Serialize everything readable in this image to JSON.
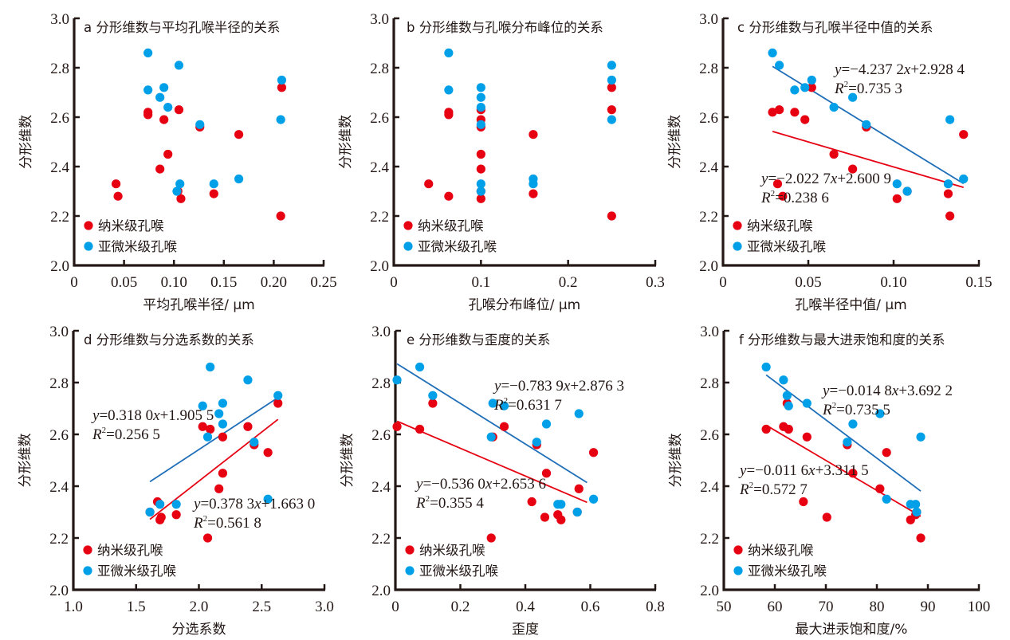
{
  "figure": {
    "y_axis_label": "分形维数",
    "legend": [
      {
        "key": "nano",
        "label": "纳米级孔喉",
        "color": "#E60012"
      },
      {
        "key": "submicro",
        "label": "亚微米级孔喉",
        "color": "#00A0E9"
      }
    ],
    "trendline_colors": {
      "nano": "#E60012",
      "submicro": "#1F6EB8"
    }
  },
  "chart_data": [
    {
      "id": "a",
      "type": "scatter",
      "title": "a 分形维数与平均孔喉半径的关系",
      "xlabel": "平均孔喉半径/ μm",
      "ylabel": "分形维数",
      "xlim": [
        0,
        0.25
      ],
      "ylim": [
        2.0,
        3.0
      ],
      "xticks": [
        0,
        0.05,
        0.1,
        0.15,
        0.2,
        0.25
      ],
      "xtick_labels": [
        "0",
        "0.05",
        "0.10",
        "0.15",
        "0.20",
        "0.25"
      ],
      "yticks": [
        2.0,
        2.2,
        2.4,
        2.6,
        2.8,
        3.0
      ],
      "ytick_labels": [
        "2.0",
        "2.2",
        "2.4",
        "2.6",
        "2.8",
        "3.0"
      ],
      "legend_position": "bottom-left",
      "series": [
        {
          "name": "纳米级孔喉",
          "key": "nano",
          "x": [
            0.042,
            0.044,
            0.074,
            0.074,
            0.09,
            0.094,
            0.086,
            0.105,
            0.104,
            0.107,
            0.126,
            0.14,
            0.165,
            0.208,
            0.207
          ],
          "y": [
            2.33,
            2.28,
            2.62,
            2.61,
            2.59,
            2.45,
            2.39,
            2.63,
            2.3,
            2.27,
            2.56,
            2.29,
            2.53,
            2.72,
            2.2
          ]
        },
        {
          "name": "亚微米级孔喉",
          "key": "submicro",
          "x": [
            0.074,
            0.074,
            0.09,
            0.086,
            0.094,
            0.105,
            0.126,
            0.106,
            0.103,
            0.14,
            0.165,
            0.208,
            0.207
          ],
          "y": [
            2.86,
            2.71,
            2.72,
            2.68,
            2.64,
            2.81,
            2.57,
            2.33,
            2.3,
            2.33,
            2.35,
            2.75,
            2.59
          ]
        }
      ],
      "trendlines": []
    },
    {
      "id": "b",
      "type": "scatter",
      "title": "b 分形维数与孔喉分布峰位的关系",
      "xlabel": "孔喉分布峰位/ μm",
      "ylabel": "分形维数",
      "xlim": [
        0,
        0.3
      ],
      "ylim": [
        2.0,
        3.0
      ],
      "xticks": [
        0,
        0.1,
        0.2,
        0.3
      ],
      "xtick_labels": [
        "0",
        "0.1",
        "0.2",
        "0.3"
      ],
      "yticks": [
        2.0,
        2.2,
        2.4,
        2.6,
        2.8,
        3.0
      ],
      "ytick_labels": [
        "2.0",
        "2.2",
        "2.4",
        "2.6",
        "2.8",
        "3.0"
      ],
      "legend_position": "bottom-left",
      "series": [
        {
          "name": "纳米级孔喉",
          "key": "nano",
          "x": [
            0.04,
            0.063,
            0.063,
            0.063,
            0.1,
            0.1,
            0.1,
            0.1,
            0.1,
            0.1,
            0.1,
            0.16,
            0.16,
            0.25,
            0.25,
            0.25
          ],
          "y": [
            2.33,
            2.28,
            2.62,
            2.61,
            2.59,
            2.56,
            2.45,
            2.39,
            2.3,
            2.27,
            2.63,
            2.53,
            2.29,
            2.72,
            2.63,
            2.2
          ]
        },
        {
          "name": "亚微米级孔喉",
          "key": "submicro",
          "x": [
            0.063,
            0.063,
            0.1,
            0.1,
            0.1,
            0.1,
            0.1,
            0.1,
            0.16,
            0.16,
            0.25,
            0.25,
            0.25
          ],
          "y": [
            2.86,
            2.71,
            2.72,
            2.68,
            2.64,
            2.57,
            2.33,
            2.3,
            2.35,
            2.33,
            2.81,
            2.75,
            2.59
          ]
        }
      ],
      "trendlines": []
    },
    {
      "id": "c",
      "type": "scatter",
      "title": "c 分形维数与孔喉半径中值的关系",
      "xlabel": "孔喉半径中值/ μm",
      "ylabel": "分形维数",
      "xlim": [
        0,
        0.15
      ],
      "ylim": [
        2.0,
        3.0
      ],
      "xticks": [
        0,
        0.05,
        0.1,
        0.15
      ],
      "xtick_labels": [
        "0",
        "0.05",
        "0.10",
        "0.15"
      ],
      "yticks": [
        2.0,
        2.2,
        2.4,
        2.6,
        2.8,
        3.0
      ],
      "ytick_labels": [
        "2.0",
        "2.2",
        "2.4",
        "2.6",
        "2.8",
        "3.0"
      ],
      "legend_position": "bottom-left",
      "series": [
        {
          "name": "纳米级孔喉",
          "key": "nano",
          "x": [
            0.029,
            0.032,
            0.033,
            0.035,
            0.042,
            0.048,
            0.052,
            0.065,
            0.076,
            0.084,
            0.102,
            0.108,
            0.132,
            0.133,
            0.141
          ],
          "y": [
            2.62,
            2.33,
            2.63,
            2.28,
            2.62,
            2.59,
            2.72,
            2.45,
            2.39,
            2.56,
            2.27,
            2.3,
            2.29,
            2.2,
            2.53
          ]
        },
        {
          "name": "亚微米级孔喉",
          "key": "submicro",
          "x": [
            0.029,
            0.033,
            0.042,
            0.048,
            0.052,
            0.065,
            0.076,
            0.084,
            0.102,
            0.108,
            0.132,
            0.133,
            0.141
          ],
          "y": [
            2.86,
            2.81,
            2.71,
            2.72,
            2.75,
            2.64,
            2.68,
            2.57,
            2.33,
            2.3,
            2.33,
            2.59,
            2.35
          ]
        }
      ],
      "trendlines": [
        {
          "key": "submicro",
          "slope": -4.2372,
          "intercept": 2.9284,
          "x_range": [
            0.029,
            0.141
          ],
          "equation": "y=−4.237 2x+2.928 4",
          "r2_label": "R²=0.735 3",
          "eq_parts": [
            "y",
            "=−4.237 2",
            "x",
            "+2.928 4"
          ],
          "r2_parts": [
            "R",
            "2",
            "=0.735 3"
          ]
        },
        {
          "key": "nano",
          "slope": -2.0227,
          "intercept": 2.6009,
          "x_range": [
            0.029,
            0.141
          ],
          "equation": "y=−2.022 7x+2.600 9",
          "r2_label": "R²=0.238 6",
          "eq_parts": [
            "y",
            "=−2.022 7",
            "x",
            "+2.600 9"
          ],
          "r2_parts": [
            "R",
            "2",
            "=0.238 6"
          ]
        }
      ]
    },
    {
      "id": "d",
      "type": "scatter",
      "title": "d 分形维数与分选系数的关系",
      "xlabel": "分选系数",
      "ylabel": "分形维数",
      "xlim": [
        1.0,
        3.0
      ],
      "ylim": [
        2.0,
        3.0
      ],
      "xticks": [
        1.0,
        1.5,
        2.0,
        2.5,
        3.0
      ],
      "xtick_labels": [
        "1.0",
        "1.5",
        "2.0",
        "2.5",
        "3.0"
      ],
      "yticks": [
        2.0,
        2.2,
        2.4,
        2.6,
        2.8,
        3.0
      ],
      "ytick_labels": [
        "2.0",
        "2.2",
        "2.4",
        "2.6",
        "2.8",
        "3.0"
      ],
      "legend_position": "bottom-left",
      "series": [
        {
          "name": "纳米级孔喉",
          "key": "nano",
          "x": [
            1.61,
            1.67,
            1.69,
            1.7,
            1.82,
            2.03,
            2.07,
            2.09,
            2.19,
            2.19,
            2.16,
            2.39,
            2.44,
            2.55,
            2.63
          ],
          "y": [
            2.3,
            2.34,
            2.27,
            2.28,
            2.29,
            2.63,
            2.2,
            2.62,
            2.59,
            2.45,
            2.39,
            2.63,
            2.56,
            2.53,
            2.72
          ]
        },
        {
          "name": "亚微米级孔喉",
          "key": "submicro",
          "x": [
            1.61,
            1.69,
            1.82,
            2.03,
            2.07,
            2.09,
            2.16,
            2.19,
            2.19,
            2.39,
            2.44,
            2.55,
            2.63
          ],
          "y": [
            2.3,
            2.33,
            2.33,
            2.71,
            2.59,
            2.86,
            2.68,
            2.72,
            2.64,
            2.81,
            2.57,
            2.35,
            2.75
          ]
        }
      ],
      "trendlines": [
        {
          "key": "submicro",
          "slope": 0.318,
          "intercept": 1.9055,
          "x_range": [
            1.61,
            2.63
          ],
          "equation": "y=0.318 0x+1.905 5",
          "r2_label": "R²=0.256 5",
          "eq_parts": [
            "y",
            "=0.318 0",
            "x",
            "+1.905 5"
          ],
          "r2_parts": [
            "R",
            "2",
            "=0.256 5"
          ]
        },
        {
          "key": "nano",
          "slope": 0.3783,
          "intercept": 1.663,
          "x_range": [
            1.61,
            2.63
          ],
          "equation": "y=0.378 3x+1.663 0",
          "r2_label": "R²=0.561 8",
          "eq_parts": [
            "y",
            "=0.378 3",
            "x",
            "+1.663 0"
          ],
          "r2_parts": [
            "R",
            "2",
            "=0.561 8"
          ]
        }
      ]
    },
    {
      "id": "e",
      "type": "scatter",
      "title": "e 分形维数与歪度的关系",
      "xlabel": "歪度",
      "ylabel": "分形维数",
      "xlim": [
        0,
        0.8
      ],
      "ylim": [
        2.0,
        3.0
      ],
      "xticks": [
        0,
        0.2,
        0.4,
        0.6,
        0.8
      ],
      "xtick_labels": [
        "0",
        "0.2",
        "0.4",
        "0.6",
        "0.8"
      ],
      "yticks": [
        2.0,
        2.2,
        2.4,
        2.6,
        2.8,
        3.0
      ],
      "ytick_labels": [
        "2.0",
        "2.2",
        "2.4",
        "2.6",
        "2.8",
        "3.0"
      ],
      "legend_position": "bottom-left",
      "series": [
        {
          "name": "纳米级孔喉",
          "key": "nano",
          "x": [
            0.005,
            0.075,
            0.115,
            0.295,
            0.3,
            0.335,
            0.42,
            0.435,
            0.46,
            0.465,
            0.5,
            0.51,
            0.56,
            0.565,
            0.61
          ],
          "y": [
            2.63,
            2.62,
            2.72,
            2.2,
            2.59,
            2.63,
            2.34,
            2.56,
            2.28,
            2.45,
            2.29,
            2.27,
            2.3,
            2.39,
            2.53
          ]
        },
        {
          "name": "亚微米级孔喉",
          "key": "submicro",
          "x": [
            0.005,
            0.075,
            0.115,
            0.295,
            0.3,
            0.335,
            0.435,
            0.465,
            0.5,
            0.51,
            0.56,
            0.565,
            0.61
          ],
          "y": [
            2.81,
            2.86,
            2.75,
            2.59,
            2.72,
            2.71,
            2.57,
            2.64,
            2.33,
            2.33,
            2.3,
            2.68,
            2.35
          ]
        }
      ],
      "trendlines": [
        {
          "key": "submicro",
          "slope": -0.7839,
          "intercept": 2.8763,
          "x_range": [
            0.005,
            0.59
          ],
          "equation": "y=−0.783 9x+2.876 3",
          "r2_label": "R²=0.631 7",
          "eq_parts": [
            "y",
            "=−0.783 9",
            "x",
            "+2.876 3"
          ],
          "r2_parts": [
            "R",
            "2",
            "=0.631 7"
          ]
        },
        {
          "key": "nano",
          "slope": -0.536,
          "intercept": 2.6536,
          "x_range": [
            0.005,
            0.59
          ],
          "equation": "y=−0.536 0x+2.653 6",
          "r2_label": "R²=0.355 4",
          "eq_parts": [
            "y",
            "=−0.536 0",
            "x",
            "+2.653 6"
          ],
          "r2_parts": [
            "R",
            "2",
            "=0.355 4"
          ]
        }
      ]
    },
    {
      "id": "f",
      "type": "scatter",
      "title": "f 分形维数与最大进汞饱和度的关系",
      "xlabel": "最大进汞饱和度/%",
      "ylabel": "分形维数",
      "xlim": [
        50,
        100
      ],
      "ylim": [
        2.0,
        3.0
      ],
      "xticks": [
        50,
        60,
        70,
        80,
        90,
        100
      ],
      "xtick_labels": [
        "50",
        "60",
        "70",
        "80",
        "90",
        "100"
      ],
      "yticks": [
        2.0,
        2.2,
        2.4,
        2.6,
        2.8,
        3.0
      ],
      "ytick_labels": [
        "2.0",
        "2.2",
        "2.4",
        "2.6",
        "2.8",
        "3.0"
      ],
      "legend_position": "bottom-left",
      "series": [
        {
          "name": "纳米级孔喉",
          "key": "nano",
          "x": [
            58.3,
            61.7,
            62.4,
            62.7,
            65.6,
            66.3,
            70.2,
            74.2,
            75.3,
            80.6,
            81.9,
            86.6,
            87.6,
            87.8,
            88.6
          ],
          "y": [
            2.62,
            2.63,
            2.72,
            2.62,
            2.34,
            2.59,
            2.28,
            2.56,
            2.45,
            2.39,
            2.53,
            2.27,
            2.29,
            2.3,
            2.2
          ]
        },
        {
          "name": "亚微米级孔喉",
          "key": "submicro",
          "x": [
            58.3,
            61.7,
            62.4,
            62.7,
            66.3,
            74.2,
            75.3,
            80.6,
            81.9,
            86.6,
            87.6,
            87.8,
            88.6
          ],
          "y": [
            2.86,
            2.81,
            2.75,
            2.71,
            2.72,
            2.57,
            2.64,
            2.68,
            2.35,
            2.33,
            2.33,
            2.3,
            2.59
          ]
        }
      ],
      "trendlines": [
        {
          "key": "submicro",
          "slope": -0.0148,
          "intercept": 3.6922,
          "x_range": [
            58.3,
            88.6
          ],
          "equation": "y=−0.014 8x+3.692 2",
          "r2_label": "R²=0.735 5",
          "eq_parts": [
            "y",
            "=−0.014 8",
            "x",
            "+3.692 2"
          ],
          "r2_parts": [
            "R",
            "2",
            "=0.735 5"
          ]
        },
        {
          "key": "nano",
          "slope": -0.0116,
          "intercept": 3.3115,
          "x_range": [
            58.3,
            88.6
          ],
          "equation": "y=−0.011 6x+3.311 5",
          "r2_label": "R²=0.572 7",
          "eq_parts": [
            "y",
            "=−0.011 6",
            "x",
            "+3.311 5"
          ],
          "r2_parts": [
            "R",
            "2",
            "=0.572 7"
          ]
        }
      ]
    }
  ]
}
